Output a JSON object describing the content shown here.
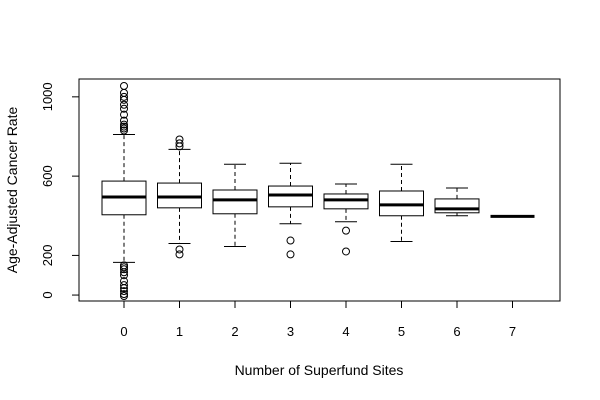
{
  "chart_data": {
    "type": "boxplot",
    "xlabel": "Number of Superfund Sites",
    "ylabel": "Age-Adjusted Cancer Rate",
    "ylim": [
      -30,
      1090
    ],
    "yticks": [
      0,
      200,
      600,
      1000
    ],
    "grid": false,
    "legend": "none",
    "categories": [
      "0",
      "1",
      "2",
      "3",
      "4",
      "5",
      "6",
      "7"
    ],
    "boxes": [
      {
        "category": "0",
        "whisker_low": 165,
        "q1": 405,
        "median": 495,
        "q3": 575,
        "whisker_high": 810,
        "outliers": [
          1055,
          1020,
          1000,
          985,
          960,
          940,
          910,
          880,
          860,
          850,
          840,
          830,
          150,
          140,
          130,
          115,
          100,
          70,
          50,
          35,
          20,
          5,
          -5
        ]
      },
      {
        "category": "1",
        "whisker_low": 260,
        "q1": 440,
        "median": 495,
        "q3": 565,
        "whisker_high": 735,
        "outliers": [
          785,
          765,
          750,
          230,
          205
        ]
      },
      {
        "category": "2",
        "whisker_low": 245,
        "q1": 410,
        "median": 480,
        "q3": 530,
        "whisker_high": 660,
        "outliers": []
      },
      {
        "category": "3",
        "whisker_low": 360,
        "q1": 445,
        "median": 505,
        "q3": 550,
        "whisker_high": 665,
        "outliers": [
          275,
          205
        ]
      },
      {
        "category": "4",
        "whisker_low": 370,
        "q1": 435,
        "median": 480,
        "q3": 510,
        "whisker_high": 560,
        "outliers": [
          325,
          220
        ]
      },
      {
        "category": "5",
        "whisker_low": 270,
        "q1": 400,
        "median": 455,
        "q3": 525,
        "whisker_high": 660,
        "outliers": []
      },
      {
        "category": "6",
        "whisker_low": 400,
        "q1": 415,
        "median": 435,
        "q3": 485,
        "whisker_high": 540,
        "outliers": []
      },
      {
        "category": "7",
        "whisker_low": 397,
        "q1": 397,
        "median": 397,
        "q3": 397,
        "whisker_high": 397,
        "outliers": []
      }
    ]
  }
}
